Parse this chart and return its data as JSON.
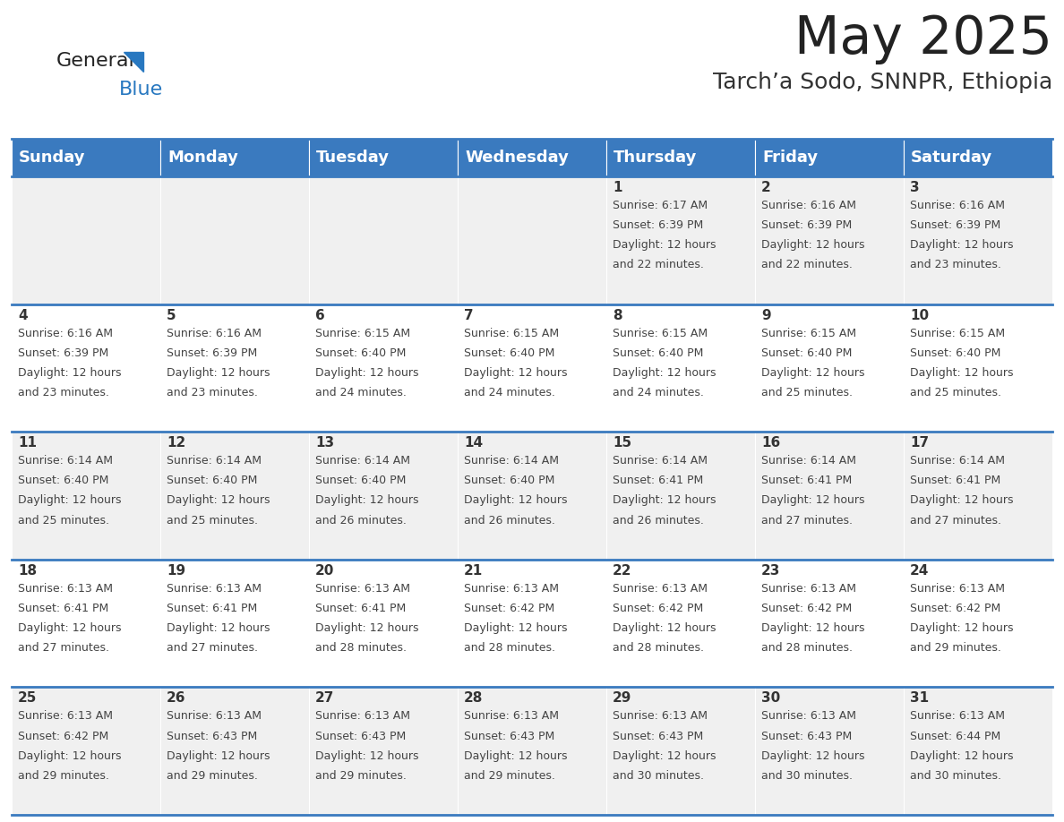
{
  "title": "May 2025",
  "subtitle": "Tarch’a Sodo, SNNPR, Ethiopia",
  "header_color": "#3a7abf",
  "header_text_color": "#ffffff",
  "cell_bg_even": "#f0f0f0",
  "cell_bg_odd": "#ffffff",
  "line_color": "#3a7abf",
  "days_of_week": [
    "Sunday",
    "Monday",
    "Tuesday",
    "Wednesday",
    "Thursday",
    "Friday",
    "Saturday"
  ],
  "calendar": [
    [
      null,
      null,
      null,
      null,
      {
        "day": 1,
        "sunrise": "6:17 AM",
        "sunset": "6:39 PM",
        "daylight": "12 hours and 22 minutes."
      },
      {
        "day": 2,
        "sunrise": "6:16 AM",
        "sunset": "6:39 PM",
        "daylight": "12 hours and 22 minutes."
      },
      {
        "day": 3,
        "sunrise": "6:16 AM",
        "sunset": "6:39 PM",
        "daylight": "12 hours and 23 minutes."
      }
    ],
    [
      {
        "day": 4,
        "sunrise": "6:16 AM",
        "sunset": "6:39 PM",
        "daylight": "12 hours and 23 minutes."
      },
      {
        "day": 5,
        "sunrise": "6:16 AM",
        "sunset": "6:39 PM",
        "daylight": "12 hours and 23 minutes."
      },
      {
        "day": 6,
        "sunrise": "6:15 AM",
        "sunset": "6:40 PM",
        "daylight": "12 hours and 24 minutes."
      },
      {
        "day": 7,
        "sunrise": "6:15 AM",
        "sunset": "6:40 PM",
        "daylight": "12 hours and 24 minutes."
      },
      {
        "day": 8,
        "sunrise": "6:15 AM",
        "sunset": "6:40 PM",
        "daylight": "12 hours and 24 minutes."
      },
      {
        "day": 9,
        "sunrise": "6:15 AM",
        "sunset": "6:40 PM",
        "daylight": "12 hours and 25 minutes."
      },
      {
        "day": 10,
        "sunrise": "6:15 AM",
        "sunset": "6:40 PM",
        "daylight": "12 hours and 25 minutes."
      }
    ],
    [
      {
        "day": 11,
        "sunrise": "6:14 AM",
        "sunset": "6:40 PM",
        "daylight": "12 hours and 25 minutes."
      },
      {
        "day": 12,
        "sunrise": "6:14 AM",
        "sunset": "6:40 PM",
        "daylight": "12 hours and 25 minutes."
      },
      {
        "day": 13,
        "sunrise": "6:14 AM",
        "sunset": "6:40 PM",
        "daylight": "12 hours and 26 minutes."
      },
      {
        "day": 14,
        "sunrise": "6:14 AM",
        "sunset": "6:40 PM",
        "daylight": "12 hours and 26 minutes."
      },
      {
        "day": 15,
        "sunrise": "6:14 AM",
        "sunset": "6:41 PM",
        "daylight": "12 hours and 26 minutes."
      },
      {
        "day": 16,
        "sunrise": "6:14 AM",
        "sunset": "6:41 PM",
        "daylight": "12 hours and 27 minutes."
      },
      {
        "day": 17,
        "sunrise": "6:14 AM",
        "sunset": "6:41 PM",
        "daylight": "12 hours and 27 minutes."
      }
    ],
    [
      {
        "day": 18,
        "sunrise": "6:13 AM",
        "sunset": "6:41 PM",
        "daylight": "12 hours and 27 minutes."
      },
      {
        "day": 19,
        "sunrise": "6:13 AM",
        "sunset": "6:41 PM",
        "daylight": "12 hours and 27 minutes."
      },
      {
        "day": 20,
        "sunrise": "6:13 AM",
        "sunset": "6:41 PM",
        "daylight": "12 hours and 28 minutes."
      },
      {
        "day": 21,
        "sunrise": "6:13 AM",
        "sunset": "6:42 PM",
        "daylight": "12 hours and 28 minutes."
      },
      {
        "day": 22,
        "sunrise": "6:13 AM",
        "sunset": "6:42 PM",
        "daylight": "12 hours and 28 minutes."
      },
      {
        "day": 23,
        "sunrise": "6:13 AM",
        "sunset": "6:42 PM",
        "daylight": "12 hours and 28 minutes."
      },
      {
        "day": 24,
        "sunrise": "6:13 AM",
        "sunset": "6:42 PM",
        "daylight": "12 hours and 29 minutes."
      }
    ],
    [
      {
        "day": 25,
        "sunrise": "6:13 AM",
        "sunset": "6:42 PM",
        "daylight": "12 hours and 29 minutes."
      },
      {
        "day": 26,
        "sunrise": "6:13 AM",
        "sunset": "6:43 PM",
        "daylight": "12 hours and 29 minutes."
      },
      {
        "day": 27,
        "sunrise": "6:13 AM",
        "sunset": "6:43 PM",
        "daylight": "12 hours and 29 minutes."
      },
      {
        "day": 28,
        "sunrise": "6:13 AM",
        "sunset": "6:43 PM",
        "daylight": "12 hours and 29 minutes."
      },
      {
        "day": 29,
        "sunrise": "6:13 AM",
        "sunset": "6:43 PM",
        "daylight": "12 hours and 30 minutes."
      },
      {
        "day": 30,
        "sunrise": "6:13 AM",
        "sunset": "6:43 PM",
        "daylight": "12 hours and 30 minutes."
      },
      {
        "day": 31,
        "sunrise": "6:13 AM",
        "sunset": "6:44 PM",
        "daylight": "12 hours and 30 minutes."
      }
    ]
  ],
  "logo_general_color": "#222222",
  "logo_blue_color": "#2878c0",
  "logo_triangle_color": "#2878c0",
  "title_fontsize": 42,
  "subtitle_fontsize": 18,
  "header_fontsize": 13,
  "daynum_fontsize": 11,
  "cell_fontsize": 9
}
